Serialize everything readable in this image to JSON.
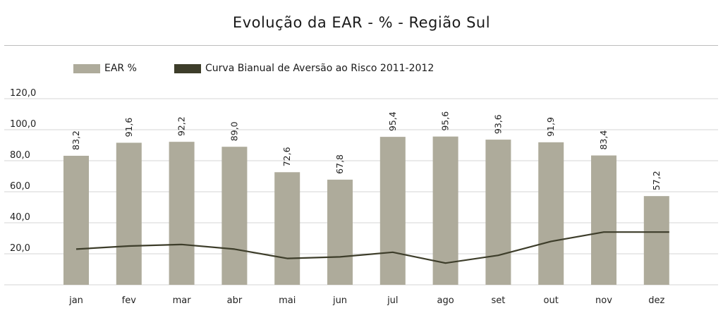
{
  "chart_data": {
    "type": "bar",
    "title": "Evolução da EAR - % - Região Sul",
    "categories": [
      "jan",
      "fev",
      "mar",
      "abr",
      "mai",
      "jun",
      "jul",
      "ago",
      "set",
      "out",
      "nov",
      "dez"
    ],
    "series": [
      {
        "name": "EAR %",
        "type": "bar",
        "color": "#aeab9b",
        "values": [
          83.2,
          91.6,
          92.2,
          89.0,
          72.6,
          67.8,
          95.4,
          95.6,
          93.6,
          91.9,
          83.4,
          57.2
        ],
        "labels": [
          "83,2",
          "91,6",
          "92,2",
          "89,0",
          "72,6",
          "67,8",
          "95,4",
          "95,6",
          "93,6",
          "91,9",
          "83,4",
          "57,2"
        ]
      },
      {
        "name": "Curva Bianual de Aversão ao Risco 2011-2012",
        "type": "line",
        "color": "#3d3d2a",
        "values": [
          23,
          25,
          26,
          23,
          17,
          18,
          21,
          14,
          19,
          28,
          34,
          34
        ]
      }
    ],
    "yticks": [
      {
        "value": 20,
        "label": "20,0"
      },
      {
        "value": 40,
        "label": "40,0"
      },
      {
        "value": 60,
        "label": "60,0"
      },
      {
        "value": 80,
        "label": "80,0"
      },
      {
        "value": 100,
        "label": "100,0"
      },
      {
        "value": 120,
        "label": "120,0"
      }
    ],
    "ylim": [
      0,
      120
    ],
    "grid": true,
    "legend": "top-left"
  }
}
